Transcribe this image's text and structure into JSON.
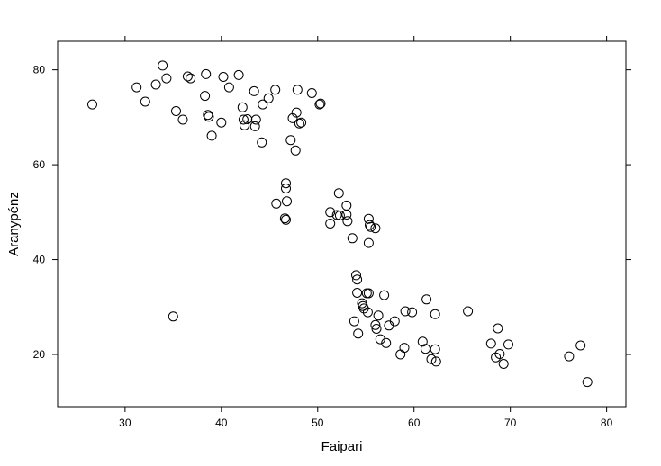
{
  "chart_data": {
    "type": "scatter",
    "title": "",
    "xlabel": "Faipari",
    "ylabel": "Aranypénz",
    "xlim": [
      23,
      82
    ],
    "ylim": [
      9,
      86
    ],
    "x_ticks": [
      30,
      40,
      50,
      60,
      70,
      80
    ],
    "y_ticks": [
      20,
      40,
      60,
      80
    ],
    "x_tick_labels": [
      "30",
      "40",
      "50",
      "60",
      "70",
      "80"
    ],
    "y_tick_labels": [
      "20",
      "40",
      "60",
      "80"
    ],
    "grid": false,
    "marker": "open-circle",
    "points": [
      [
        26.6,
        72.7
      ],
      [
        31.2,
        76.3
      ],
      [
        32.1,
        73.3
      ],
      [
        33.2,
        76.9
      ],
      [
        33.9,
        80.9
      ],
      [
        34.3,
        78.2
      ],
      [
        35.3,
        71.3
      ],
      [
        36.0,
        69.5
      ],
      [
        36.5,
        78.6
      ],
      [
        36.8,
        78.2
      ],
      [
        38.3,
        74.5
      ],
      [
        38.4,
        79.1
      ],
      [
        38.6,
        70.5
      ],
      [
        38.7,
        70.1
      ],
      [
        39.0,
        66.1
      ],
      [
        40.0,
        68.9
      ],
      [
        40.2,
        78.5
      ],
      [
        40.8,
        76.3
      ],
      [
        41.8,
        78.9
      ],
      [
        42.2,
        72.1
      ],
      [
        42.3,
        69.5
      ],
      [
        42.4,
        68.3
      ],
      [
        42.7,
        69.6
      ],
      [
        43.4,
        75.5
      ],
      [
        43.5,
        68.1
      ],
      [
        43.6,
        69.5
      ],
      [
        44.2,
        64.7
      ],
      [
        44.3,
        72.7
      ],
      [
        44.9,
        74.0
      ],
      [
        45.6,
        75.8
      ],
      [
        47.2,
        65.2
      ],
      [
        47.4,
        69.8
      ],
      [
        47.7,
        63.0
      ],
      [
        47.8,
        71.0
      ],
      [
        47.9,
        75.8
      ],
      [
        48.1,
        68.7
      ],
      [
        48.3,
        68.9
      ],
      [
        49.4,
        75.1
      ],
      [
        50.2,
        72.7
      ],
      [
        50.3,
        72.9
      ],
      [
        45.7,
        51.8
      ],
      [
        46.7,
        56.1
      ],
      [
        46.7,
        55.0
      ],
      [
        46.8,
        52.3
      ],
      [
        46.6,
        48.7
      ],
      [
        46.7,
        48.4
      ],
      [
        51.3,
        50.0
      ],
      [
        51.3,
        47.6
      ],
      [
        52.0,
        49.4
      ],
      [
        52.2,
        54.0
      ],
      [
        52.3,
        49.3
      ],
      [
        53.0,
        51.4
      ],
      [
        53.0,
        49.5
      ],
      [
        53.1,
        48.1
      ],
      [
        53.6,
        44.5
      ],
      [
        55.3,
        48.6
      ],
      [
        55.4,
        47.3
      ],
      [
        55.5,
        46.9
      ],
      [
        56.0,
        46.6
      ],
      [
        55.3,
        43.5
      ],
      [
        35.0,
        28.0
      ],
      [
        54.0,
        36.7
      ],
      [
        54.1,
        35.8
      ],
      [
        54.1,
        33.0
      ],
      [
        54.6,
        30.8
      ],
      [
        54.7,
        30.2
      ],
      [
        54.8,
        29.7
      ],
      [
        55.1,
        32.9
      ],
      [
        55.3,
        32.9
      ],
      [
        55.2,
        28.9
      ],
      [
        53.8,
        27.0
      ],
      [
        54.2,
        24.4
      ],
      [
        56.0,
        26.2
      ],
      [
        56.1,
        25.4
      ],
      [
        56.3,
        28.2
      ],
      [
        56.5,
        23.2
      ],
      [
        56.9,
        32.5
      ],
      [
        57.1,
        22.4
      ],
      [
        57.4,
        26.1
      ],
      [
        58.0,
        27.0
      ],
      [
        58.6,
        20.0
      ],
      [
        59.0,
        21.4
      ],
      [
        59.1,
        29.1
      ],
      [
        59.8,
        28.9
      ],
      [
        60.9,
        22.7
      ],
      [
        61.3,
        31.6
      ],
      [
        61.2,
        21.2
      ],
      [
        61.8,
        19.0
      ],
      [
        62.2,
        28.5
      ],
      [
        62.2,
        21.1
      ],
      [
        62.3,
        18.5
      ],
      [
        65.6,
        29.1
      ],
      [
        68.0,
        22.3
      ],
      [
        68.5,
        19.4
      ],
      [
        68.7,
        25.5
      ],
      [
        68.9,
        20.1
      ],
      [
        69.3,
        18.0
      ],
      [
        69.8,
        22.1
      ],
      [
        76.1,
        19.6
      ],
      [
        77.3,
        21.9
      ],
      [
        78.0,
        14.2
      ]
    ]
  }
}
